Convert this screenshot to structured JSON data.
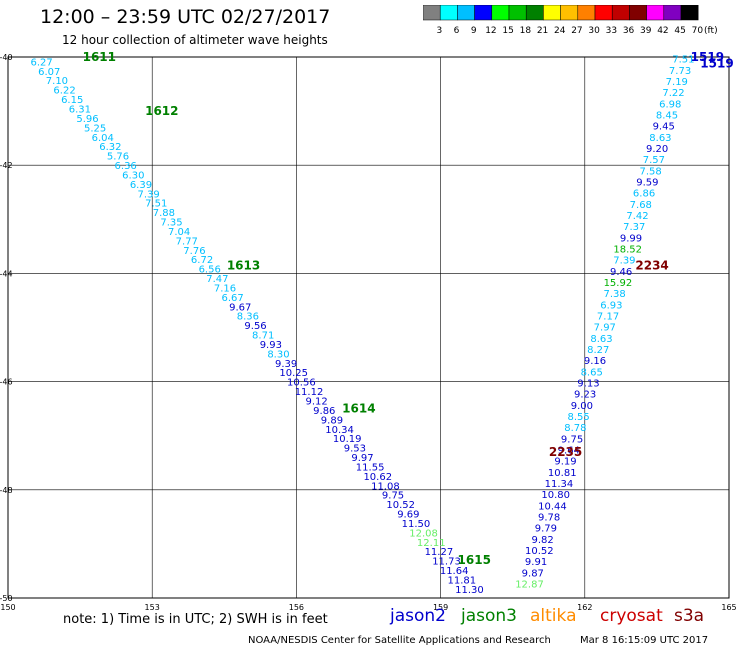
{
  "header": {
    "title": "12:00 – 23:59 UTC 02/27/2017",
    "subtitle": "12 hour collection of altimeter wave heights"
  },
  "colorbar": {
    "ticks": [
      "3",
      "6",
      "9",
      "12",
      "15",
      "18",
      "21",
      "24",
      "27",
      "30",
      "33",
      "36",
      "39",
      "42",
      "45",
      "70"
    ],
    "unit": "(ft)",
    "colors": [
      "#808080",
      "#00ffff",
      "#00bfff",
      "#0000ff",
      "#00ff00",
      "#00c000",
      "#008000",
      "#ffff00",
      "#ffc000",
      "#ff8000",
      "#ff0000",
      "#c00000",
      "#800000",
      "#ff00ff",
      "#8000c0",
      "#000000"
    ]
  },
  "footer": {
    "note": "note:  1) Time is in UTC;  2) SWH is in feet",
    "legend": [
      {
        "label": "jason2",
        "color": "#0000cc"
      },
      {
        "label": "jason3",
        "color": "#008000"
      },
      {
        "label": "altika",
        "color": "#ff8c00"
      },
      {
        "label": "cryosat",
        "color": "#cc0000"
      },
      {
        "label": "s3a",
        "color": "#800000"
      }
    ],
    "credit": "NOAA/NESDIS Center for Satellite Applications and Research",
    "date": "Mar  8 16:15:09 UTC 2017"
  },
  "chart_data": {
    "type": "scatter",
    "xlim": [
      150,
      165
    ],
    "ylim": [
      -50,
      -40
    ],
    "x_ticks": [
      150,
      153,
      156,
      159,
      162,
      165
    ],
    "y_ticks": [
      -40,
      -42,
      -44,
      -46,
      -48,
      -50
    ],
    "x_tick_labels": [
      "150",
      "153",
      "156",
      "159",
      "162",
      "165"
    ],
    "y_tick_labels": [
      "-40",
      "-42",
      "-44",
      "-46",
      "-48",
      "-50"
    ],
    "track_a_values": [
      "6.27",
      "6.07",
      "7.10",
      "6.22",
      "6.15",
      "6.31",
      "5.96",
      "5.25",
      "6.04",
      "6.32",
      "5.76",
      "6.36",
      "6.30",
      "6.39",
      "7.39",
      "7.51",
      "7.88",
      "7.35",
      "7.04",
      "7.77",
      "7.76",
      "6.72",
      "6.56",
      "7.47",
      "7.16",
      "6.67",
      "9.67",
      "8.36",
      "9.56",
      "8.71",
      "9.93",
      "8.30",
      "9.39",
      "10.25",
      "10.56",
      "11.12",
      "9.12",
      "9.86",
      "9.89",
      "10.34",
      "10.19",
      "9.53",
      "9.97",
      "11.55",
      "10.62",
      "11.08",
      "9.75",
      "10.52",
      "9.69",
      "11.50",
      "12.08",
      "12.11",
      "11.27",
      "11.73",
      "11.64",
      "11.81",
      "11.30"
    ],
    "track_b_values": [
      "7.51",
      "7.73",
      "7.19",
      "7.22",
      "6.98",
      "8.45",
      "9.45",
      "8.63",
      "9.20",
      "7.57",
      "7.58",
      "9.59",
      "6.86",
      "7.68",
      "7.42",
      "7.37",
      "9.99",
      "18.52",
      "7.39",
      "9.46",
      "15.92",
      "7.38",
      "6.93",
      "7.17",
      "7.97",
      "8.63",
      "8.27",
      "9.16",
      "8.65",
      "9.13",
      "9.23",
      "9.00",
      "8.55",
      "8.78",
      "9.75",
      "9.64",
      "9.19",
      "10.81",
      "11.34",
      "10.80",
      "10.44",
      "9.78",
      "9.79",
      "9.82",
      "10.52",
      "9.91",
      "9.87",
      "12.87"
    ],
    "series": [
      {
        "name": "jason2"
      },
      {
        "name": "jason3"
      },
      {
        "name": "altika"
      },
      {
        "name": "cryosat"
      },
      {
        "name": "s3a"
      }
    ],
    "time_labels": [
      {
        "text": "1611",
        "color": "#008000"
      },
      {
        "text": "1612",
        "color": "#008000"
      },
      {
        "text": "1613",
        "color": "#008000"
      },
      {
        "text": "1614",
        "color": "#008000"
      },
      {
        "text": "1615",
        "color": "#008000"
      },
      {
        "text": "1519",
        "color": "#0000cc"
      },
      {
        "text": "1519",
        "color": "#0000cc"
      },
      {
        "text": "2234",
        "color": "#800000"
      },
      {
        "text": "2235",
        "color": "#800000"
      }
    ]
  }
}
